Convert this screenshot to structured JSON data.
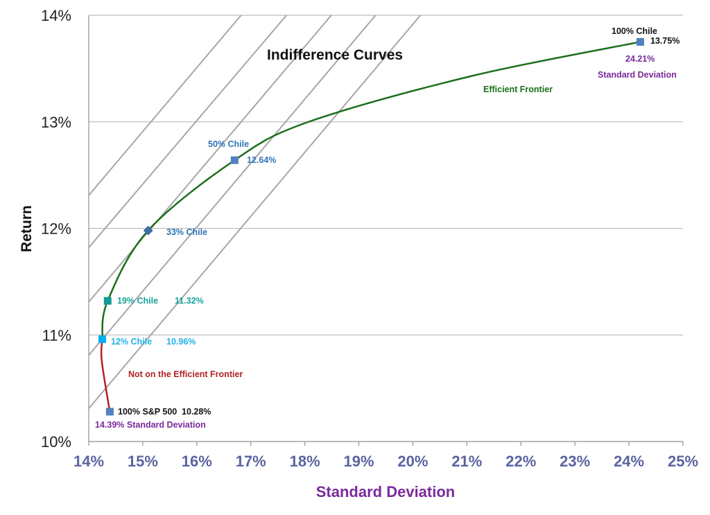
{
  "chart_data": {
    "type": "line",
    "title": "",
    "xlabel": "Standard Deviation",
    "ylabel": "Return",
    "xlim": [
      14,
      25
    ],
    "ylim": [
      10,
      14
    ],
    "x_ticks": [
      "14%",
      "15%",
      "16%",
      "17%",
      "18%",
      "19%",
      "20%",
      "21%",
      "22%",
      "23%",
      "24%",
      "25%"
    ],
    "y_ticks": [
      "10%",
      "11%",
      "12%",
      "13%",
      "14%"
    ],
    "grid": "horizontal",
    "indifference_label": "Indifference Curves",
    "indifference_lines": [
      [
        [
          14,
          12.31
        ],
        [
          16.82,
          14
        ]
      ],
      [
        [
          14,
          11.82
        ],
        [
          17.66,
          14
        ]
      ],
      [
        [
          14,
          11.31
        ],
        [
          18.49,
          14
        ]
      ],
      [
        [
          14,
          10.81
        ],
        [
          19.31,
          14
        ]
      ],
      [
        [
          14,
          10.31
        ],
        [
          20.14,
          14
        ]
      ]
    ],
    "series": [
      {
        "name": "Efficient Frontier",
        "color": "#1a6e1a",
        "points": [
          [
            14.25,
            10.96
          ],
          [
            14.35,
            11.32
          ],
          [
            15.1,
            11.98
          ],
          [
            16.7,
            12.64
          ],
          [
            18.07,
            13.0
          ],
          [
            21.09,
            13.43
          ],
          [
            24.21,
            13.75
          ]
        ]
      },
      {
        "name": "Not on the Efficient Frontier",
        "color": "#b22222",
        "points": [
          [
            14.39,
            10.28
          ],
          [
            14.24,
            10.76
          ],
          [
            14.25,
            10.96
          ]
        ]
      }
    ],
    "markers": [
      {
        "x": 14.39,
        "y": 10.28,
        "shape": "square",
        "color": "#4f81bd",
        "label": "100% S&P 500",
        "value": "10.28%",
        "sd": "14.39% Standard Deviation",
        "label_color": "#111111"
      },
      {
        "x": 14.25,
        "y": 10.96,
        "shape": "square",
        "color": "#00b0f0",
        "label": "12% Chile",
        "value": "10.96%",
        "label_color": "#1fb0e6"
      },
      {
        "x": 14.35,
        "y": 11.32,
        "shape": "square",
        "color": "#139a94",
        "label": "19% Chile",
        "value": "11.32%",
        "label_color": "#1aa39c"
      },
      {
        "x": 15.1,
        "y": 11.98,
        "shape": "diamond",
        "color": "#3d6ea8",
        "label": "33% Chile",
        "label_color": "#2e75b6"
      },
      {
        "x": 16.7,
        "y": 12.64,
        "shape": "square",
        "color": "#4f81bd",
        "label": "50% Chile",
        "value": "12.64%",
        "label_color": "#2e75b6"
      },
      {
        "x": 24.21,
        "y": 13.75,
        "shape": "square",
        "color": "#4f81bd",
        "label": "100% Chile",
        "value": "13.75%",
        "sd": "24.21%",
        "sd_label": "Standard Deviation",
        "label_color": "#111111"
      }
    ],
    "colors": {
      "sd_text": "#7a2a9a",
      "grid": "#bfbfbf",
      "indifference": "#a6a6a6"
    }
  }
}
